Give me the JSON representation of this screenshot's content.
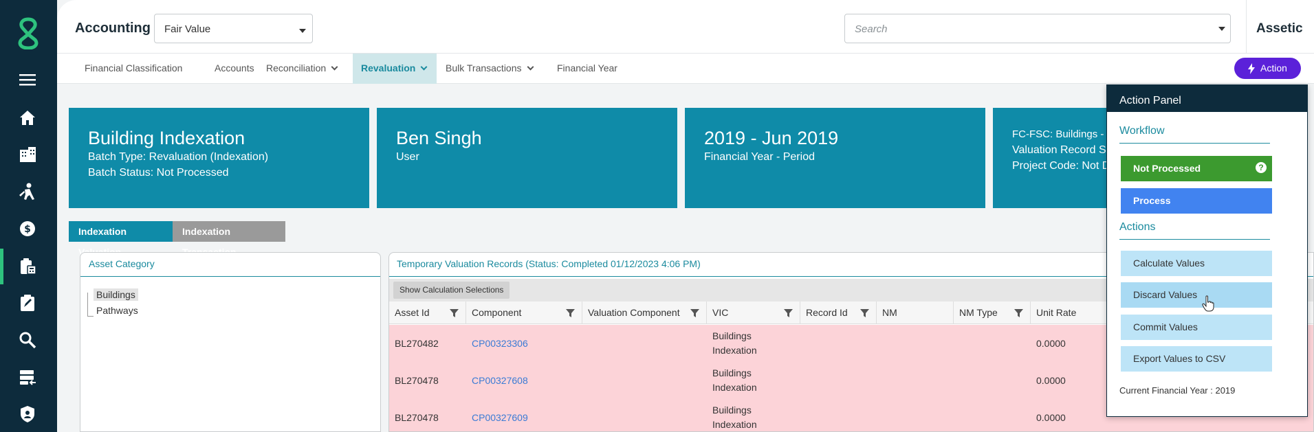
{
  "app": {
    "title": "Accounting",
    "org_name": "Assetic"
  },
  "module_select": {
    "value": "Fair Value"
  },
  "search": {
    "placeholder": "Search"
  },
  "left_nav": {
    "icons": [
      "menu-icon",
      "home-icon",
      "buildings-icon",
      "worker-icon",
      "finance-icon",
      "accounting-clipboard-icon",
      "edit-clipboard-icon",
      "search-icon",
      "server-import-icon",
      "shield-user-icon"
    ]
  },
  "tabs": [
    {
      "label": "Financial Classification",
      "dropdown": false
    },
    {
      "label": "Accounts",
      "dropdown": false
    },
    {
      "label": "Reconciliation",
      "dropdown": true
    },
    {
      "label": "Revaluation",
      "dropdown": true,
      "active": true
    },
    {
      "label": "Bulk Transactions",
      "dropdown": true
    },
    {
      "label": "Financial Year",
      "dropdown": false
    }
  ],
  "action_button": {
    "label": "Action"
  },
  "cards": [
    {
      "title": "Building Indexation",
      "line1": "Batch Type: Revaluation (Indexation)",
      "line2": "Batch Status: Not Processed"
    },
    {
      "title": "Ben Singh",
      "line1": "User",
      "line2": ""
    },
    {
      "title": "2019 - Jun 2019",
      "line1": "Financial Year - Period",
      "line2": ""
    },
    {
      "title": "",
      "line1": "FC-FSC: Buildings - B",
      "line2": "Valuation Record Su",
      "line3": "Project Code: Not De"
    }
  ],
  "subtabs": [
    {
      "label": "Indexation Valuation",
      "active": true
    },
    {
      "label": "Indexation Transaction",
      "active": false
    }
  ],
  "asset_category": {
    "title": "Asset Category",
    "items": [
      "Buildings",
      "Pathways"
    ]
  },
  "grid": {
    "title": "Temporary Valuation Records (Status: Completed 01/12/2023 4:06 PM)",
    "toolbar_button": "Show Calculation Selections",
    "columns": [
      "Asset Id",
      "Component",
      "Valuation Component",
      "VIC",
      "Record Id",
      "NM",
      "NM Type",
      "Unit Rate"
    ],
    "rows": [
      {
        "asset_id": "BL270482",
        "component": "CP00323306",
        "valuation_component": "",
        "vic": "Buildings Indexation",
        "record_id": "",
        "nm": "",
        "nm_type": "",
        "unit_rate": "0.0000"
      },
      {
        "asset_id": "BL270478",
        "component": "CP00327608",
        "valuation_component": "",
        "vic": "Buildings Indexation",
        "record_id": "",
        "nm": "",
        "nm_type": "",
        "unit_rate": "0.0000"
      },
      {
        "asset_id": "BL270478",
        "component": "CP00327609",
        "valuation_component": "",
        "vic": "Buildings Indexation",
        "record_id": "",
        "nm": "",
        "nm_type": "",
        "unit_rate": "0.0000"
      }
    ]
  },
  "action_panel": {
    "title": "Action Panel",
    "workflow_label": "Workflow",
    "workflow_buttons": [
      "Not Processed",
      "Process"
    ],
    "help_glyph": "?",
    "actions_label": "Actions",
    "action_buttons": [
      "Calculate Values",
      "Discard Values",
      "Commit Values",
      "Export Values to CSV"
    ],
    "footer": "Current Financial Year : 2019"
  },
  "colors": {
    "nav_bg": "#0d2b3c",
    "accent_teal": "#0f8ba8",
    "action_purple": "#5b21d9",
    "status_green": "#3c9a2f",
    "process_blue": "#4183f0",
    "row_error_pink": "#fcd3d8"
  }
}
